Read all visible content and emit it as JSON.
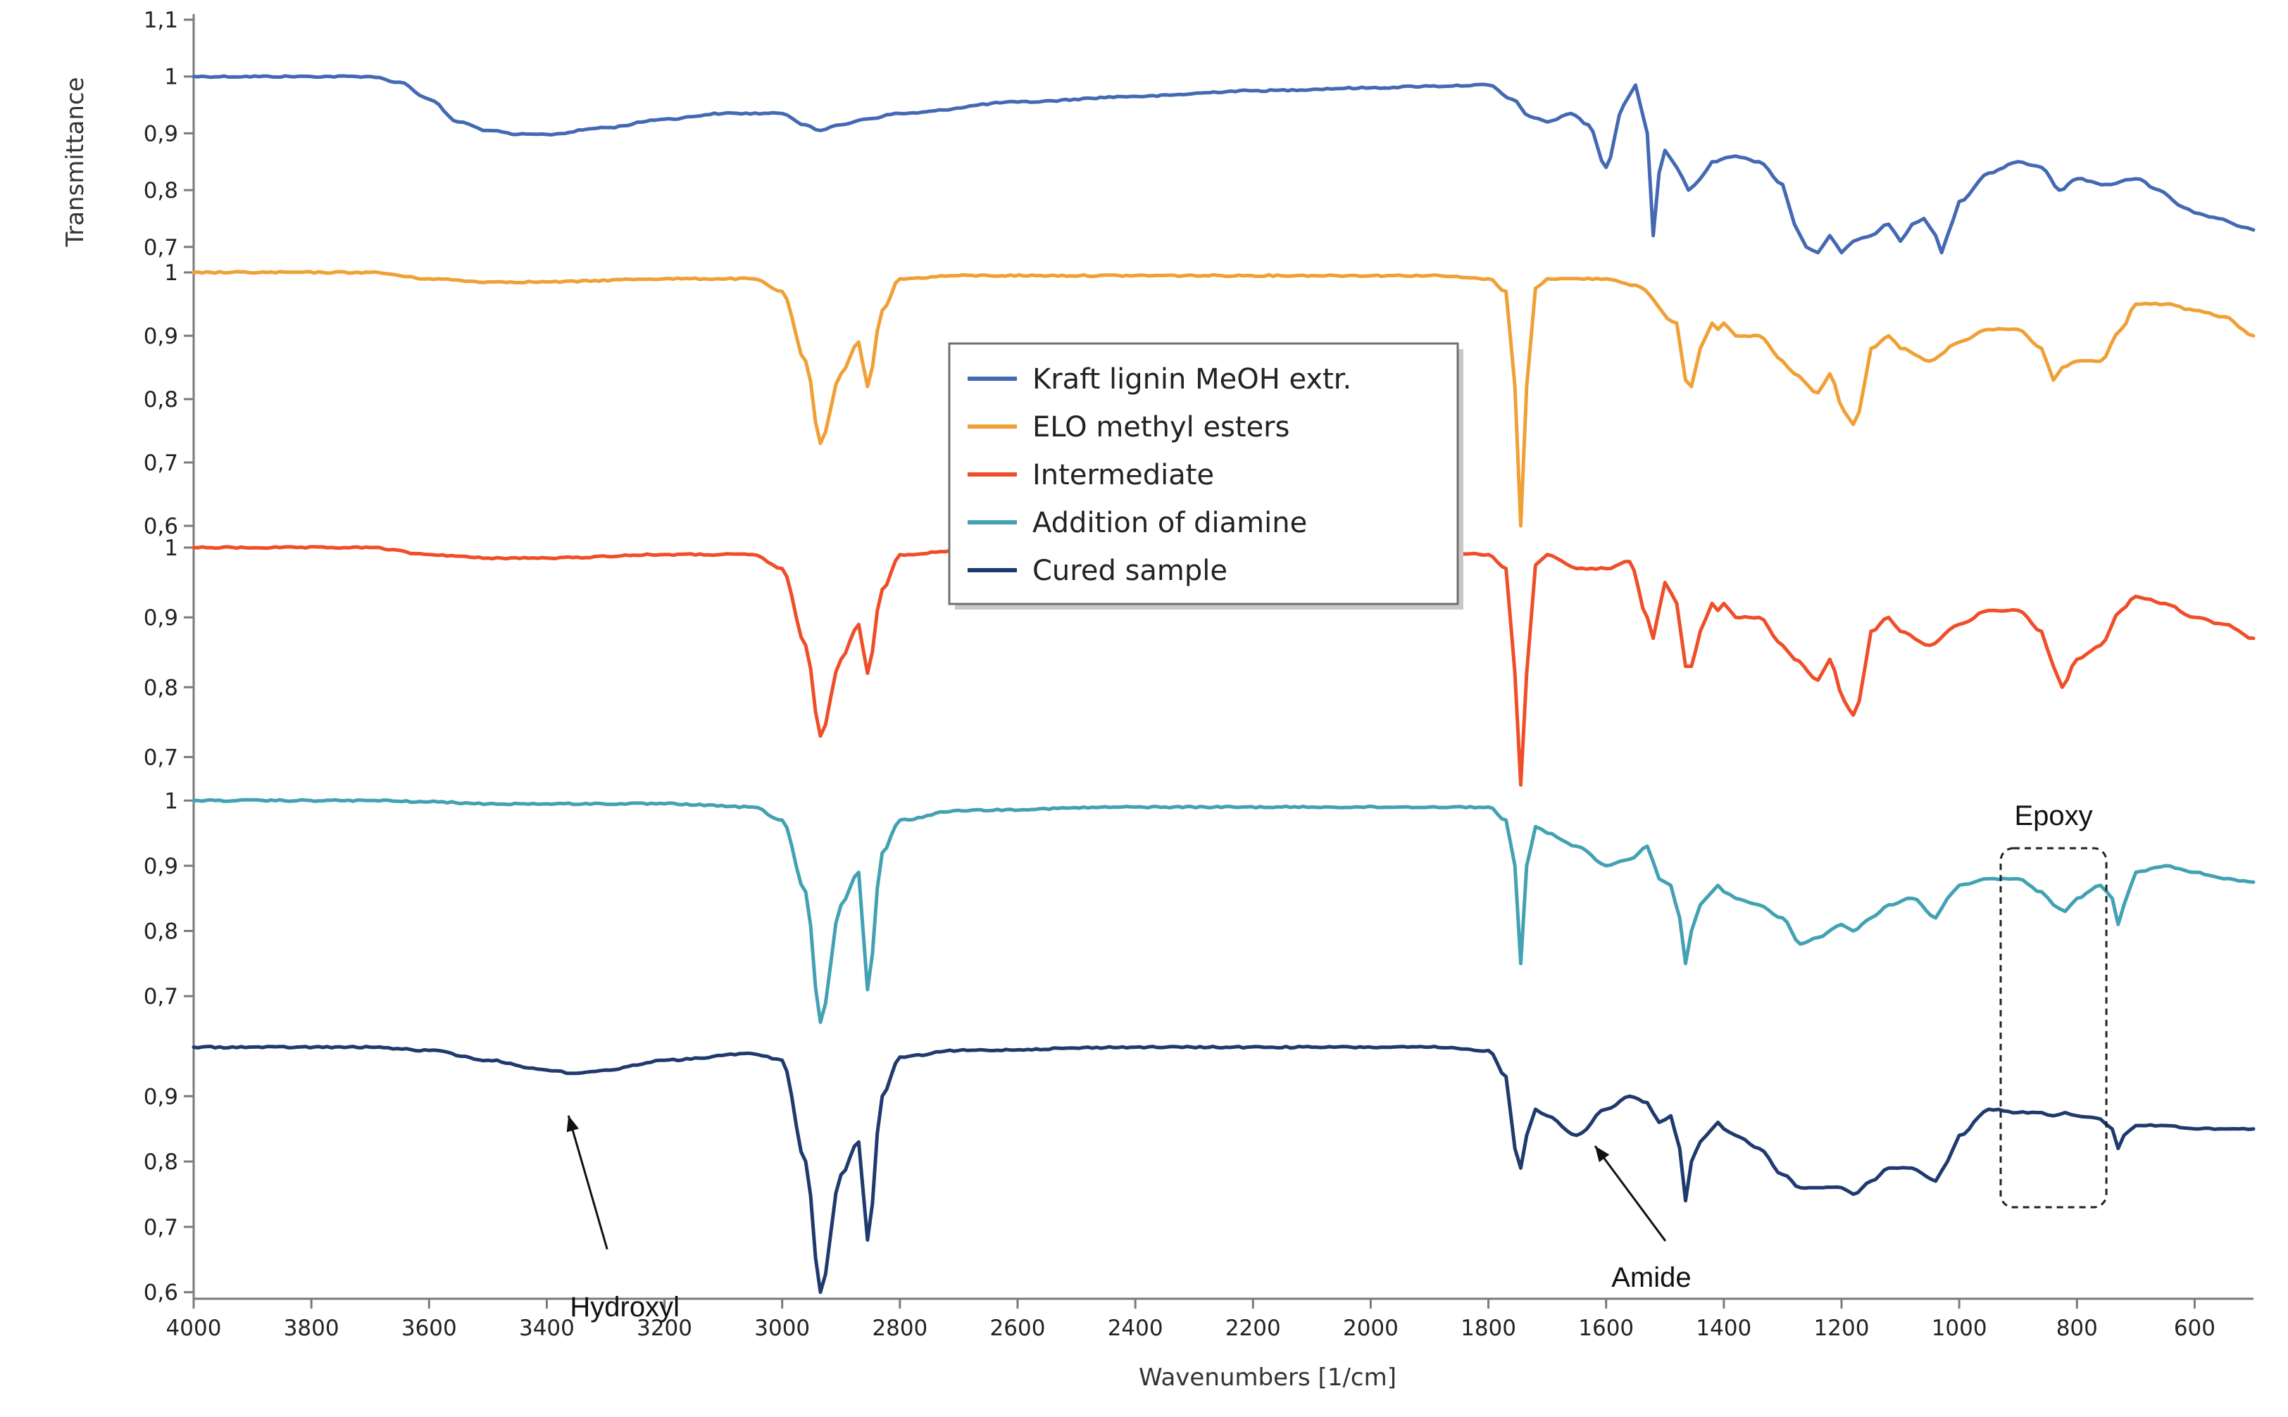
{
  "chart_data": {
    "type": "line",
    "title": "",
    "xlabel": "Wavenumbers [1/cm]",
    "ylabel": "Transmittance",
    "xlim": [
      4000,
      500
    ],
    "x_ticks": [
      4000,
      3800,
      3600,
      3400,
      3200,
      3000,
      2800,
      2600,
      2400,
      2200,
      2000,
      1800,
      1600,
      1400,
      1200,
      1000,
      800,
      600
    ],
    "panels": [
      {
        "ylim": [
          0.67,
          1.1
        ],
        "y_ticks": [
          "1,1",
          "1",
          "0,9",
          "0,8",
          "0,7"
        ],
        "y_tick_values": [
          1.1,
          1.0,
          0.9,
          0.8,
          0.7
        ]
      },
      {
        "ylim": [
          0.58,
          1.01
        ],
        "y_ticks": [
          "1",
          "0,9",
          "0,8",
          "0,7",
          "0,6"
        ],
        "y_tick_values": [
          1.0,
          0.9,
          0.8,
          0.7,
          0.6
        ]
      },
      {
        "ylim": [
          0.65,
          1.01
        ],
        "y_ticks": [
          "1",
          "0,9",
          "0,8",
          "0,7"
        ],
        "y_tick_values": [
          1.0,
          0.9,
          0.8,
          0.7
        ]
      },
      {
        "ylim": [
          0.63,
          1.01
        ],
        "y_ticks": [
          "1",
          "0,9",
          "0,8",
          "0,7"
        ],
        "y_tick_values": [
          1.0,
          0.9,
          0.8,
          0.7
        ]
      },
      {
        "ylim": [
          0.59,
          0.98
        ],
        "y_ticks": [
          "0,9",
          "0,8",
          "0,7",
          "0,6"
        ],
        "y_tick_values": [
          0.9,
          0.8,
          0.7,
          0.6
        ]
      }
    ],
    "series": [
      {
        "name": "Kraft lignin MeOH extr.",
        "color": "#4469b3",
        "panel": 0,
        "x": [
          4000,
          3800,
          3700,
          3650,
          3600,
          3550,
          3500,
          3450,
          3400,
          3300,
          3200,
          3100,
          3000,
          2960,
          2935,
          2900,
          2860,
          2800,
          2600,
          2400,
          2200,
          2000,
          1900,
          1800,
          1760,
          1730,
          1700,
          1660,
          1630,
          1600,
          1570,
          1550,
          1530,
          1520,
          1510,
          1500,
          1480,
          1460,
          1440,
          1420,
          1380,
          1340,
          1300,
          1280,
          1270,
          1260,
          1240,
          1220,
          1200,
          1180,
          1150,
          1120,
          1100,
          1080,
          1060,
          1040,
          1030,
          1020,
          1000,
          950,
          900,
          860,
          830,
          800,
          750,
          700,
          660,
          620,
          600,
          560,
          520,
          500
        ],
        "y": [
          1.0,
          1.0,
          1.0,
          0.99,
          0.96,
          0.92,
          0.905,
          0.898,
          0.898,
          0.91,
          0.925,
          0.935,
          0.935,
          0.915,
          0.905,
          0.915,
          0.925,
          0.935,
          0.955,
          0.965,
          0.975,
          0.98,
          0.983,
          0.985,
          0.96,
          0.93,
          0.92,
          0.935,
          0.915,
          0.84,
          0.95,
          0.985,
          0.9,
          0.72,
          0.83,
          0.87,
          0.84,
          0.8,
          0.82,
          0.85,
          0.86,
          0.85,
          0.81,
          0.74,
          0.72,
          0.7,
          0.69,
          0.72,
          0.69,
          0.71,
          0.72,
          0.74,
          0.71,
          0.74,
          0.75,
          0.72,
          0.69,
          0.72,
          0.78,
          0.83,
          0.85,
          0.84,
          0.8,
          0.82,
          0.81,
          0.82,
          0.8,
          0.77,
          0.76,
          0.75,
          0.735,
          0.73
        ]
      },
      {
        "name": "ELO methyl esters",
        "color": "#f0a035",
        "panel": 1,
        "x": [
          4000,
          3700,
          3600,
          3500,
          3400,
          3200,
          3050,
          3000,
          2960,
          2935,
          2900,
          2870,
          2855,
          2830,
          2800,
          2700,
          2400,
          2100,
          1900,
          1800,
          1770,
          1755,
          1745,
          1735,
          1720,
          1700,
          1600,
          1550,
          1480,
          1465,
          1455,
          1440,
          1420,
          1410,
          1400,
          1380,
          1340,
          1300,
          1280,
          1240,
          1220,
          1195,
          1180,
          1170,
          1150,
          1120,
          1100,
          1050,
          1000,
          950,
          900,
          860,
          840,
          825,
          800,
          760,
          725,
          700,
          650,
          600,
          550,
          500
        ],
        "y": [
          1.0,
          1.0,
          0.99,
          0.985,
          0.985,
          0.99,
          0.99,
          0.97,
          0.86,
          0.73,
          0.84,
          0.89,
          0.82,
          0.94,
          0.99,
          0.995,
          0.995,
          0.995,
          0.995,
          0.99,
          0.97,
          0.82,
          0.6,
          0.82,
          0.975,
          0.99,
          0.99,
          0.98,
          0.92,
          0.83,
          0.82,
          0.88,
          0.92,
          0.91,
          0.92,
          0.9,
          0.9,
          0.86,
          0.84,
          0.81,
          0.84,
          0.78,
          0.76,
          0.78,
          0.88,
          0.9,
          0.88,
          0.86,
          0.89,
          0.91,
          0.91,
          0.88,
          0.83,
          0.85,
          0.86,
          0.86,
          0.91,
          0.95,
          0.95,
          0.94,
          0.93,
          0.9
        ]
      },
      {
        "name": "Intermediate",
        "color": "#ef4e28",
        "panel": 2,
        "x": [
          4000,
          3700,
          3600,
          3500,
          3400,
          3200,
          3050,
          3000,
          2960,
          2935,
          2900,
          2870,
          2855,
          2830,
          2800,
          2700,
          2400,
          2100,
          1900,
          1800,
          1770,
          1755,
          1745,
          1735,
          1720,
          1700,
          1650,
          1600,
          1560,
          1530,
          1520,
          1500,
          1480,
          1465,
          1455,
          1440,
          1420,
          1410,
          1400,
          1380,
          1340,
          1300,
          1280,
          1240,
          1220,
          1195,
          1180,
          1170,
          1150,
          1120,
          1100,
          1050,
          1000,
          950,
          900,
          860,
          840,
          825,
          800,
          760,
          725,
          700,
          650,
          600,
          550,
          500
        ],
        "y": [
          1.0,
          1.0,
          0.99,
          0.985,
          0.985,
          0.99,
          0.99,
          0.97,
          0.86,
          0.73,
          0.84,
          0.89,
          0.82,
          0.94,
          0.99,
          0.995,
          0.995,
          0.995,
          0.995,
          0.99,
          0.97,
          0.82,
          0.66,
          0.82,
          0.975,
          0.99,
          0.97,
          0.97,
          0.98,
          0.9,
          0.87,
          0.95,
          0.92,
          0.83,
          0.83,
          0.88,
          0.92,
          0.91,
          0.92,
          0.9,
          0.9,
          0.86,
          0.84,
          0.81,
          0.84,
          0.78,
          0.76,
          0.78,
          0.88,
          0.9,
          0.88,
          0.86,
          0.89,
          0.91,
          0.91,
          0.88,
          0.83,
          0.8,
          0.84,
          0.86,
          0.91,
          0.93,
          0.92,
          0.9,
          0.89,
          0.87
        ]
      },
      {
        "name": "Addition of diamine",
        "color": "#42a2b3",
        "panel": 3,
        "x": [
          4000,
          3700,
          3600,
          3500,
          3400,
          3200,
          3050,
          3000,
          2960,
          2935,
          2900,
          2870,
          2855,
          2830,
          2800,
          2700,
          2400,
          2100,
          1900,
          1800,
          1770,
          1755,
          1745,
          1735,
          1720,
          1700,
          1650,
          1600,
          1560,
          1530,
          1510,
          1490,
          1475,
          1465,
          1455,
          1440,
          1420,
          1410,
          1400,
          1380,
          1340,
          1300,
          1270,
          1240,
          1200,
          1180,
          1150,
          1120,
          1080,
          1040,
          1020,
          1000,
          950,
          900,
          860,
          840,
          820,
          800,
          760,
          740,
          730,
          720,
          700,
          650,
          600,
          550,
          500
        ],
        "y": [
          1.0,
          1.0,
          0.998,
          0.995,
          0.995,
          0.995,
          0.99,
          0.97,
          0.86,
          0.66,
          0.84,
          0.89,
          0.71,
          0.92,
          0.97,
          0.985,
          0.99,
          0.99,
          0.99,
          0.99,
          0.97,
          0.9,
          0.75,
          0.9,
          0.96,
          0.95,
          0.93,
          0.9,
          0.91,
          0.93,
          0.88,
          0.87,
          0.82,
          0.75,
          0.8,
          0.84,
          0.86,
          0.87,
          0.86,
          0.85,
          0.84,
          0.82,
          0.78,
          0.79,
          0.81,
          0.8,
          0.82,
          0.84,
          0.85,
          0.82,
          0.85,
          0.87,
          0.88,
          0.88,
          0.86,
          0.84,
          0.83,
          0.85,
          0.87,
          0.85,
          0.81,
          0.84,
          0.89,
          0.9,
          0.89,
          0.88,
          0.875
        ]
      },
      {
        "name": "Cured sample",
        "color": "#1f3a6e",
        "panel": 4,
        "x": [
          4000,
          3700,
          3600,
          3500,
          3400,
          3350,
          3300,
          3200,
          3050,
          3000,
          2960,
          2935,
          2900,
          2870,
          2855,
          2830,
          2800,
          2700,
          2400,
          2100,
          1900,
          1800,
          1770,
          1755,
          1745,
          1735,
          1720,
          1700,
          1650,
          1600,
          1560,
          1530,
          1510,
          1490,
          1475,
          1465,
          1455,
          1440,
          1420,
          1410,
          1400,
          1380,
          1340,
          1300,
          1270,
          1240,
          1200,
          1180,
          1150,
          1120,
          1080,
          1040,
          1020,
          1000,
          950,
          900,
          860,
          840,
          820,
          800,
          760,
          740,
          730,
          720,
          700,
          650,
          600,
          550,
          500
        ],
        "y": [
          0.975,
          0.975,
          0.97,
          0.955,
          0.94,
          0.935,
          0.94,
          0.955,
          0.965,
          0.955,
          0.8,
          0.6,
          0.78,
          0.83,
          0.68,
          0.9,
          0.96,
          0.97,
          0.975,
          0.975,
          0.975,
          0.97,
          0.93,
          0.82,
          0.79,
          0.84,
          0.88,
          0.87,
          0.84,
          0.88,
          0.9,
          0.89,
          0.86,
          0.87,
          0.82,
          0.74,
          0.8,
          0.83,
          0.85,
          0.86,
          0.85,
          0.84,
          0.82,
          0.78,
          0.76,
          0.76,
          0.76,
          0.75,
          0.77,
          0.79,
          0.79,
          0.77,
          0.8,
          0.84,
          0.88,
          0.875,
          0.875,
          0.87,
          0.875,
          0.87,
          0.865,
          0.85,
          0.82,
          0.84,
          0.855,
          0.855,
          0.85,
          0.85,
          0.85
        ]
      }
    ],
    "annotations": [
      {
        "text": "Hydroxyl",
        "arrow_to": [
          3350,
          0.935
        ]
      },
      {
        "text": "Amide",
        "arrow_to": [
          1650,
          0.84
        ]
      },
      {
        "text": "Epoxy",
        "box_x": [
          920,
          750
        ]
      }
    ],
    "legend_placement": "top-center"
  }
}
